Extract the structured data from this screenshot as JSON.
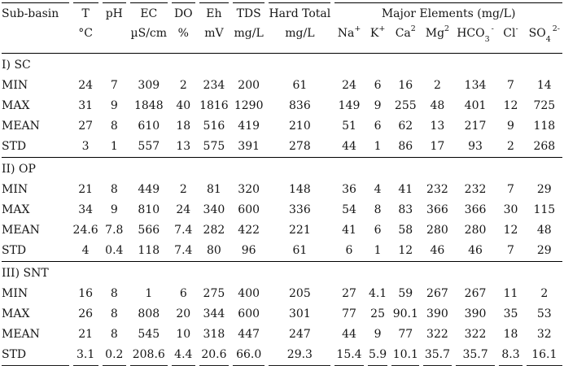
{
  "table": {
    "headers": {
      "sub_basin": "Sub-basin",
      "cols": [
        {
          "label": "T",
          "unit": "°C"
        },
        {
          "label": "pH",
          "unit": ""
        },
        {
          "label": "EC",
          "unit": "µS/cm"
        },
        {
          "label": "DO",
          "unit": "%"
        },
        {
          "label": "Eh",
          "unit": "mV"
        },
        {
          "label": "TDS",
          "unit": "mg/L"
        },
        {
          "label": "Hard Total",
          "unit": "mg/L"
        }
      ],
      "major_elements": "Major Elements (mg/L)",
      "ions": [
        {
          "base": "Na",
          "sub": "",
          "sup": "+"
        },
        {
          "base": "K",
          "sub": "",
          "sup": "+"
        },
        {
          "base": "Ca",
          "sub": "",
          "sup": "2"
        },
        {
          "base": "Mg",
          "sub": "",
          "sup": "2"
        },
        {
          "base": "HCO",
          "sub": "3",
          "sup": "-"
        },
        {
          "base": "Cl",
          "sub": "",
          "sup": "-"
        },
        {
          "base": "SO",
          "sub": "4",
          "sup": "2-"
        }
      ]
    },
    "sections": [
      {
        "name": "I) SC",
        "rows": [
          {
            "stat": "MIN",
            "values": [
              "24",
              "7",
              "309",
              "2",
              "234",
              "200",
              "61",
              "24",
              "6",
              "16",
              "2",
              "134",
              "7",
              "14"
            ]
          },
          {
            "stat": "MAX",
            "values": [
              "31",
              "9",
              "1848",
              "40",
              "1816",
              "1290",
              "836",
              "149",
              "9",
              "255",
              "48",
              "401",
              "12",
              "725"
            ]
          },
          {
            "stat": "MEAN",
            "values": [
              "27",
              "8",
              "610",
              "18",
              "516",
              "419",
              "210",
              "51",
              "6",
              "62",
              "13",
              "217",
              "9",
              "118"
            ]
          },
          {
            "stat": "STD",
            "values": [
              "3",
              "1",
              "557",
              "13",
              "575",
              "391",
              "278",
              "44",
              "1",
              "86",
              "17",
              "93",
              "2",
              "268"
            ]
          }
        ]
      },
      {
        "name": "II) OP",
        "rows": [
          {
            "stat": "MIN",
            "values": [
              "21",
              "8",
              "449",
              "2",
              "81",
              "320",
              "148",
              "36",
              "4",
              "41",
              "232",
              "232",
              "7",
              "29"
            ]
          },
          {
            "stat": "MAX",
            "values": [
              "34",
              "9",
              "810",
              "24",
              "340",
              "600",
              "336",
              "54",
              "8",
              "83",
              "366",
              "366",
              "30",
              "115"
            ]
          },
          {
            "stat": "MEAN",
            "values": [
              "24.6",
              "7.8",
              "566",
              "7.4",
              "282",
              "422",
              "221",
              "41",
              "6",
              "58",
              "280",
              "280",
              "12",
              "48"
            ]
          },
          {
            "stat": "STD",
            "values": [
              "4",
              "0.4",
              "118",
              "7.4",
              "80",
              "96",
              "61",
              "6",
              "1",
              "12",
              "46",
              "46",
              "7",
              "29"
            ]
          }
        ]
      },
      {
        "name": "III) SNT",
        "rows": [
          {
            "stat": "MIN",
            "values": [
              "16",
              "8",
              "1",
              "6",
              "275",
              "400",
              "205",
              "27",
              "4.1",
              "59",
              "267",
              "267",
              "11",
              "2"
            ]
          },
          {
            "stat": "MAX",
            "values": [
              "26",
              "8",
              "808",
              "20",
              "344",
              "600",
              "301",
              "77",
              "25",
              "90.1",
              "390",
              "390",
              "35",
              "53"
            ]
          },
          {
            "stat": "MEAN",
            "values": [
              "21",
              "8",
              "545",
              "10",
              "318",
              "447",
              "247",
              "44",
              "9",
              "77",
              "322",
              "322",
              "18",
              "32"
            ]
          },
          {
            "stat": "STD",
            "values": [
              "3.1",
              "0.2",
              "208.6",
              "4.4",
              "20.6",
              "66.0",
              "29.3",
              "15.4",
              "5.9",
              "10.1",
              "35.7",
              "35.7",
              "8.3",
              "16.1"
            ]
          }
        ]
      }
    ]
  }
}
